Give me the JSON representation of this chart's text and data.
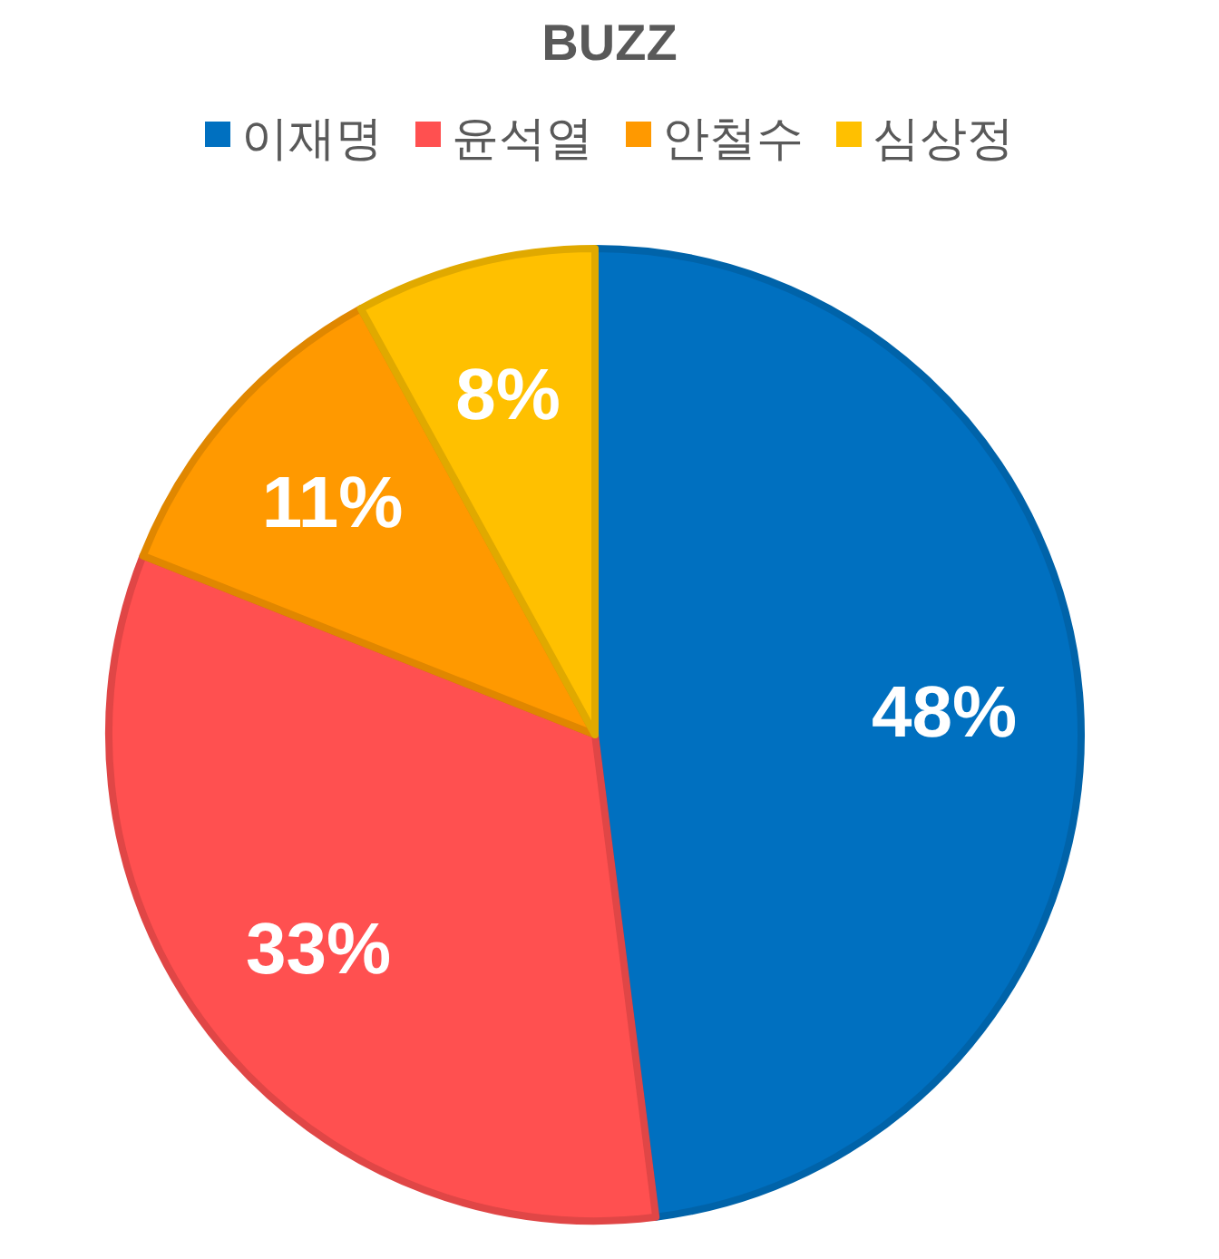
{
  "chart_data": {
    "type": "pie",
    "title": "BUZZ",
    "categories": [
      "이재명",
      "윤석열",
      "안철수",
      "심상정"
    ],
    "values": [
      48,
      33,
      11,
      8
    ],
    "value_labels": [
      "48%",
      "33%",
      "11%",
      "8%"
    ],
    "colors": [
      "#0070c0",
      "#ff5050",
      "#ff9900",
      "#ffc000"
    ],
    "legend": "top"
  }
}
